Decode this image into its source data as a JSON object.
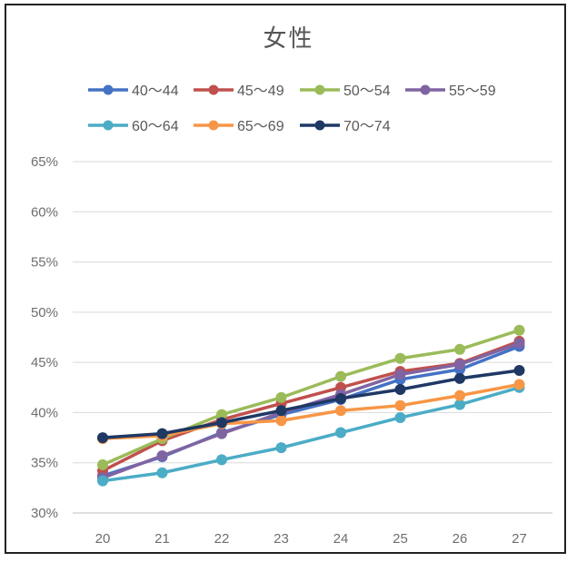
{
  "chart_data": {
    "type": "line",
    "title": "女性",
    "xlabel": "",
    "ylabel": "",
    "x": [
      20,
      21,
      22,
      23,
      24,
      25,
      26,
      27
    ],
    "ylim": [
      0.3,
      0.65
    ],
    "y_ticks": [
      "30%",
      "35%",
      "40%",
      "45%",
      "50%",
      "55%",
      "60%",
      "65%"
    ],
    "grid": true,
    "legend_position": "top",
    "series": [
      {
        "name": "40～44",
        "color": "#4472C4",
        "values": [
          0.337,
          0.356,
          0.38,
          0.398,
          0.413,
          0.433,
          0.443,
          0.466
        ]
      },
      {
        "name": "45～49",
        "color": "#C0504D",
        "values": [
          0.342,
          0.372,
          0.393,
          0.409,
          0.425,
          0.441,
          0.449,
          0.471
        ]
      },
      {
        "name": "50～54",
        "color": "#9BBB59",
        "values": [
          0.348,
          0.374,
          0.398,
          0.415,
          0.436,
          0.454,
          0.463,
          0.482
        ]
      },
      {
        "name": "55～59",
        "color": "#8064A2",
        "values": [
          0.335,
          0.357,
          0.379,
          0.4,
          0.418,
          0.438,
          0.448,
          0.469
        ]
      },
      {
        "name": "60～64",
        "color": "#4BACC6",
        "values": [
          0.332,
          0.34,
          0.353,
          0.365,
          0.38,
          0.395,
          0.408,
          0.425
        ]
      },
      {
        "name": "65～69",
        "color": "#F79646",
        "values": [
          0.374,
          0.377,
          0.389,
          0.392,
          0.402,
          0.407,
          0.417,
          0.428
        ]
      },
      {
        "name": "70～74",
        "color": "#1F3864",
        "values": [
          0.375,
          0.379,
          0.39,
          0.402,
          0.414,
          0.423,
          0.434,
          0.442
        ]
      }
    ]
  }
}
